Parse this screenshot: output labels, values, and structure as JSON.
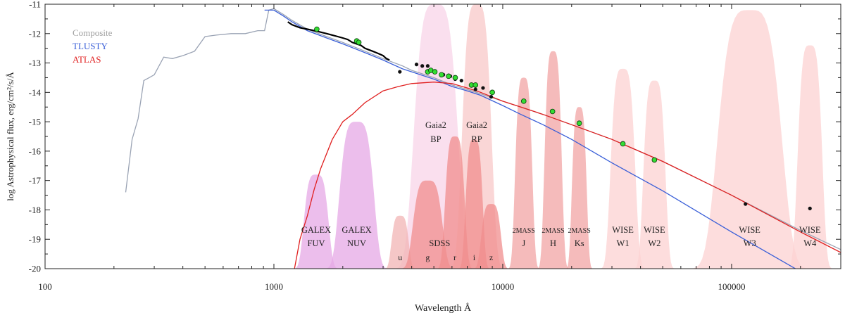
{
  "chart_data": {
    "type": "line",
    "xlabel": "Wavelength Å",
    "ylabel": "log Astrophysical flux, erg/cm²/s/Å",
    "xscale": "log",
    "xlim": [
      100,
      300000
    ],
    "ylim": [
      -20,
      -11
    ],
    "x_ticks": [
      {
        "value": 100,
        "label": "100"
      },
      {
        "value": 1000,
        "label": "1000"
      },
      {
        "value": 10000,
        "label": "10000"
      },
      {
        "value": 100000,
        "label": "100000"
      }
    ],
    "y_ticks": [
      {
        "value": -11,
        "label": "-11"
      },
      {
        "value": -12,
        "label": "-12"
      },
      {
        "value": -13,
        "label": "-13"
      },
      {
        "value": -14,
        "label": "-14"
      },
      {
        "value": -15,
        "label": "-15"
      },
      {
        "value": -16,
        "label": "-16"
      },
      {
        "value": -17,
        "label": "-17"
      },
      {
        "value": -18,
        "label": "-18"
      },
      {
        "value": -19,
        "label": "-19"
      },
      {
        "value": -20,
        "label": "-20"
      }
    ],
    "legend": {
      "placement": "top-left",
      "entries": [
        {
          "label": "Composite",
          "color": "#a0a0a0"
        },
        {
          "label": "TLUSTY",
          "color": "#3a5fd8"
        },
        {
          "label": "ATLAS",
          "color": "#e02020"
        }
      ]
    },
    "series": [
      {
        "name": "Composite",
        "color": "#9aa3b4",
        "x": [
          225,
          240,
          255,
          270,
          285,
          300,
          330,
          360,
          400,
          450,
          500,
          560,
          650,
          750,
          850,
          910,
          950,
          1000,
          1100,
          1200,
          1400,
          1700,
          2000,
          2500,
          3000,
          3646,
          4000,
          5000,
          6000,
          7000,
          8000,
          10000,
          12000,
          15000,
          20000,
          30000,
          50000,
          100000,
          200000,
          300000
        ],
        "y": [
          -17.4,
          -15.6,
          -14.9,
          -13.6,
          -13.5,
          -13.4,
          -12.8,
          -12.85,
          -12.75,
          -12.6,
          -12.1,
          -12.05,
          -12.0,
          -12.0,
          -11.9,
          -11.9,
          -11.2,
          -11.15,
          -11.35,
          -11.55,
          -11.85,
          -12.1,
          -12.3,
          -12.6,
          -12.85,
          -13.1,
          -13.25,
          -13.5,
          -13.75,
          -13.9,
          -14.05,
          -14.3,
          -14.5,
          -14.75,
          -15.1,
          -15.6,
          -16.35,
          -17.5,
          -18.7,
          -19.35
        ]
      },
      {
        "name": "TLUSTY",
        "color": "#3a5fd8",
        "x": [
          910,
          950,
          1000,
          1100,
          1200,
          1400,
          1700,
          2000,
          2500,
          3000,
          3646,
          4000,
          5000,
          6000,
          7000,
          8000,
          10000,
          12000,
          15000,
          20000,
          30000,
          50000,
          100000,
          200000,
          300000
        ],
        "y": [
          -11.2,
          -11.2,
          -11.2,
          -11.4,
          -11.6,
          -11.9,
          -12.15,
          -12.35,
          -12.65,
          -12.9,
          -13.2,
          -13.3,
          -13.55,
          -13.8,
          -13.95,
          -14.1,
          -14.45,
          -14.75,
          -15.1,
          -15.6,
          -16.4,
          -17.35,
          -18.75,
          -20.1,
          -20.8
        ]
      },
      {
        "name": "ATLAS",
        "color": "#e02020",
        "x": [
          1230,
          1300,
          1400,
          1500,
          1600,
          1800,
          2000,
          2200,
          2500,
          3000,
          3500,
          4000,
          5000,
          6000,
          7000,
          8000,
          10000,
          12000,
          15000,
          20000,
          30000,
          50000,
          100000,
          200000,
          300000
        ],
        "y": [
          -20.0,
          -19.0,
          -18.2,
          -17.3,
          -16.6,
          -15.6,
          -15.0,
          -14.75,
          -14.35,
          -13.95,
          -13.8,
          -13.7,
          -13.65,
          -13.7,
          -13.85,
          -14.0,
          -14.3,
          -14.5,
          -14.75,
          -15.1,
          -15.6,
          -16.35,
          -17.5,
          -18.75,
          -19.45
        ]
      }
    ],
    "observed_uv_spectrum": {
      "color": "#000000",
      "x": [
        1150,
        1200,
        1300,
        1400,
        1500,
        1600,
        1700,
        1800,
        1900,
        2000,
        2100,
        2200,
        2300,
        2400,
        2500,
        2600,
        2700,
        2800,
        2900,
        3000,
        3100,
        3200
      ],
      "y": [
        -11.6,
        -11.7,
        -11.8,
        -11.85,
        -11.9,
        -11.95,
        -12.0,
        -12.05,
        -12.1,
        -12.15,
        -12.2,
        -12.3,
        -12.35,
        -12.4,
        -12.5,
        -12.55,
        -12.6,
        -12.65,
        -12.7,
        -12.75,
        -12.85,
        -12.9
      ]
    },
    "photometry_green": [
      {
        "x": 1540,
        "y": -11.85
      },
      {
        "x": 2300,
        "y": -12.25
      },
      {
        "x": 2350,
        "y": -12.3
      },
      {
        "x": 4700,
        "y": -13.3
      },
      {
        "x": 4850,
        "y": -13.25
      },
      {
        "x": 5050,
        "y": -13.3
      },
      {
        "x": 5400,
        "y": -13.4
      },
      {
        "x": 5800,
        "y": -13.45
      },
      {
        "x": 6200,
        "y": -13.5
      },
      {
        "x": 7300,
        "y": -13.75
      },
      {
        "x": 7600,
        "y": -13.75
      },
      {
        "x": 9000,
        "y": -14.0
      },
      {
        "x": 12350,
        "y": -14.3
      },
      {
        "x": 16500,
        "y": -14.65
      },
      {
        "x": 21600,
        "y": -15.05
      },
      {
        "x": 33500,
        "y": -15.75
      },
      {
        "x": 46000,
        "y": -16.3
      }
    ],
    "photometry_black": [
      {
        "x": 3550,
        "y": -13.3
      },
      {
        "x": 4200,
        "y": -13.05
      },
      {
        "x": 4450,
        "y": -13.1
      },
      {
        "x": 4700,
        "y": -13.1
      },
      {
        "x": 5500,
        "y": -13.4
      },
      {
        "x": 5900,
        "y": -13.45
      },
      {
        "x": 6200,
        "y": -13.55
      },
      {
        "x": 6600,
        "y": -13.6
      },
      {
        "x": 7600,
        "y": -13.9
      },
      {
        "x": 8200,
        "y": -13.85
      },
      {
        "x": 8900,
        "y": -14.15
      },
      {
        "x": 115000,
        "y": -17.8
      },
      {
        "x": 220000,
        "y": -17.95
      }
    ],
    "filters": [
      {
        "id": "galex-fuv",
        "name": "GALEX",
        "band": "FUV",
        "center": 1530,
        "color": "#e6a8e6",
        "peak": -16.8
      },
      {
        "id": "galex-nuv",
        "name": "GALEX",
        "band": "NUV",
        "center": 2300,
        "color": "#e6a8e6",
        "peak": -15.0
      },
      {
        "id": "sdss-u",
        "name": "",
        "band": "u",
        "center": 3560,
        "color": "#f2b4b4",
        "peak": -18.2
      },
      {
        "id": "sdss-g",
        "name": "",
        "band": "g",
        "center": 4700,
        "color": "#f08d8d",
        "peak": -17.0
      },
      {
        "id": "sdss-r",
        "name": "",
        "band": "r",
        "center": 6180,
        "color": "#f08d8d",
        "peak": -15.5
      },
      {
        "id": "sdss-i",
        "name": "",
        "band": "i",
        "center": 7500,
        "color": "#f08d8d",
        "peak": -15.6
      },
      {
        "id": "sdss-z",
        "name": "",
        "band": "z",
        "center": 8900,
        "color": "#f08d8d",
        "peak": -17.8
      },
      {
        "id": "gaia-bp",
        "name": "Gaia2",
        "band": "BP",
        "center": 5100,
        "color": "#f8d4e8",
        "peak": -11.0
      },
      {
        "id": "gaia-rp",
        "name": "Gaia2",
        "band": "RP",
        "center": 7700,
        "color": "#f8c8c8",
        "peak": -11.0
      },
      {
        "id": "2mass-j",
        "name": "2MASS",
        "band": "J",
        "center": 12350,
        "color": "#f2a4a4",
        "peak": -13.5
      },
      {
        "id": "2mass-h",
        "name": "2MASS",
        "band": "H",
        "center": 16600,
        "color": "#f2a4a4",
        "peak": -12.6
      },
      {
        "id": "2mass-ks",
        "name": "2MASS",
        "band": "Ks",
        "center": 21600,
        "color": "#f2a4a4",
        "peak": -14.5
      },
      {
        "id": "wise-w1",
        "name": "WISE",
        "band": "W1",
        "center": 33500,
        "color": "#fcd2d2",
        "peak": -13.2
      },
      {
        "id": "wise-w2",
        "name": "WISE",
        "band": "W2",
        "center": 46000,
        "color": "#fcd2d2",
        "peak": -13.6
      },
      {
        "id": "wise-w3",
        "name": "WISE",
        "band": "W3",
        "center": 120000,
        "color": "#fcd2d2",
        "peak": -11.2
      },
      {
        "id": "wise-w4",
        "name": "WISE",
        "band": "W4",
        "center": 220000,
        "color": "#fcd2d2",
        "peak": -12.4
      }
    ],
    "sdss_label": "SDSS"
  }
}
